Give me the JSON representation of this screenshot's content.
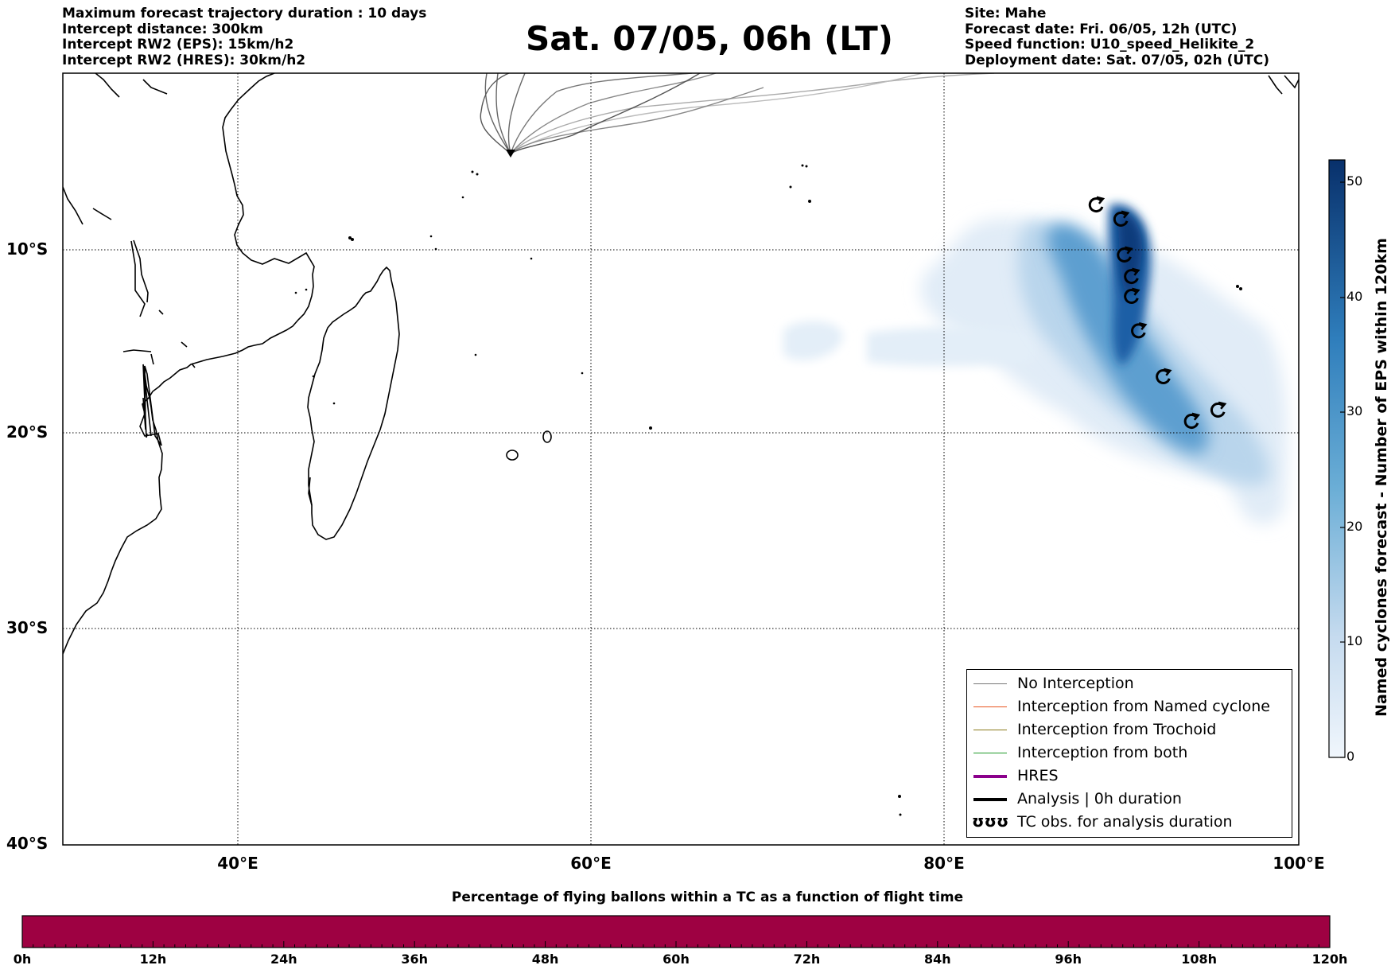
{
  "header_left": [
    "Maximum forecast trajectory duration : 10 days",
    "Intercept distance: 300km",
    "Intercept RW2 (EPS):  15km/h2",
    "Intercept RW2 (HRES): 30km/h2"
  ],
  "header_right": [
    "Site: Mahe",
    "Forecast date: Fri. 06/05, 12h (UTC)",
    "Speed function: U10_speed_Helikite_2",
    "Deployment date: Sat. 07/05, 02h (UTC)"
  ],
  "title": "Sat. 07/05, 06h (LT)",
  "map": {
    "lat_labels": [
      "10°S",
      "20°S",
      "30°S",
      "40°S"
    ],
    "lon_labels": [
      "40°E",
      "60°E",
      "80°E",
      "100°E"
    ],
    "extent": {
      "lon_min": 30,
      "lon_max": 100,
      "lat_north": -0.5,
      "lat_south": -40
    },
    "launch_site": {
      "name": "Mahe",
      "lon": 55.5,
      "lat": -4.6
    },
    "tc_obs": [
      {
        "lon": 88.6,
        "lat": -7.5
      },
      {
        "lon": 90.0,
        "lat": -8.3
      },
      {
        "lon": 90.2,
        "lat": -10.3
      },
      {
        "lon": 90.6,
        "lat": -11.5
      },
      {
        "lon": 90.6,
        "lat": -12.6
      },
      {
        "lon": 91.0,
        "lat": -14.5
      },
      {
        "lon": 92.4,
        "lat": -17.0
      },
      {
        "lon": 95.5,
        "lat": -18.8
      },
      {
        "lon": 94.0,
        "lat": -19.4
      }
    ]
  },
  "colorbar": {
    "title": "Named cyclones forecast - Number of EPS within 120km",
    "ticks": [
      "0",
      "10",
      "20",
      "30",
      "40",
      "50"
    ],
    "min": 0,
    "max": 52,
    "color_low": "#deebf7",
    "color_high": "#08306b"
  },
  "legend": {
    "items": [
      {
        "label": "No Interception",
        "color": "#777777",
        "style": "thin"
      },
      {
        "label": "Interception from Named cyclone",
        "color": "#e8541e",
        "style": "thin"
      },
      {
        "label": "Interception from Trochoid",
        "color": "#8a7a1a",
        "style": "thin"
      },
      {
        "label": "Interception from both",
        "color": "#1f9a2a",
        "style": "thin"
      },
      {
        "label": "HRES",
        "color": "#8b008b",
        "style": "thick"
      },
      {
        "label": "Analysis | 0h duration",
        "color": "#000000",
        "style": "thick"
      },
      {
        "label": "TC obs. for analysis duration",
        "color": "#000000",
        "style": "tcsymbol",
        "symbol": "ʊʊʊ"
      }
    ]
  },
  "bottom_bar": {
    "title": "Percentage of flying ballons within a TC as a function of flight time",
    "ticks": [
      "0h",
      "12h",
      "24h",
      "36h",
      "48h",
      "60h",
      "72h",
      "84h",
      "96h",
      "108h",
      "120h"
    ],
    "fill_color": "#9e0142"
  }
}
